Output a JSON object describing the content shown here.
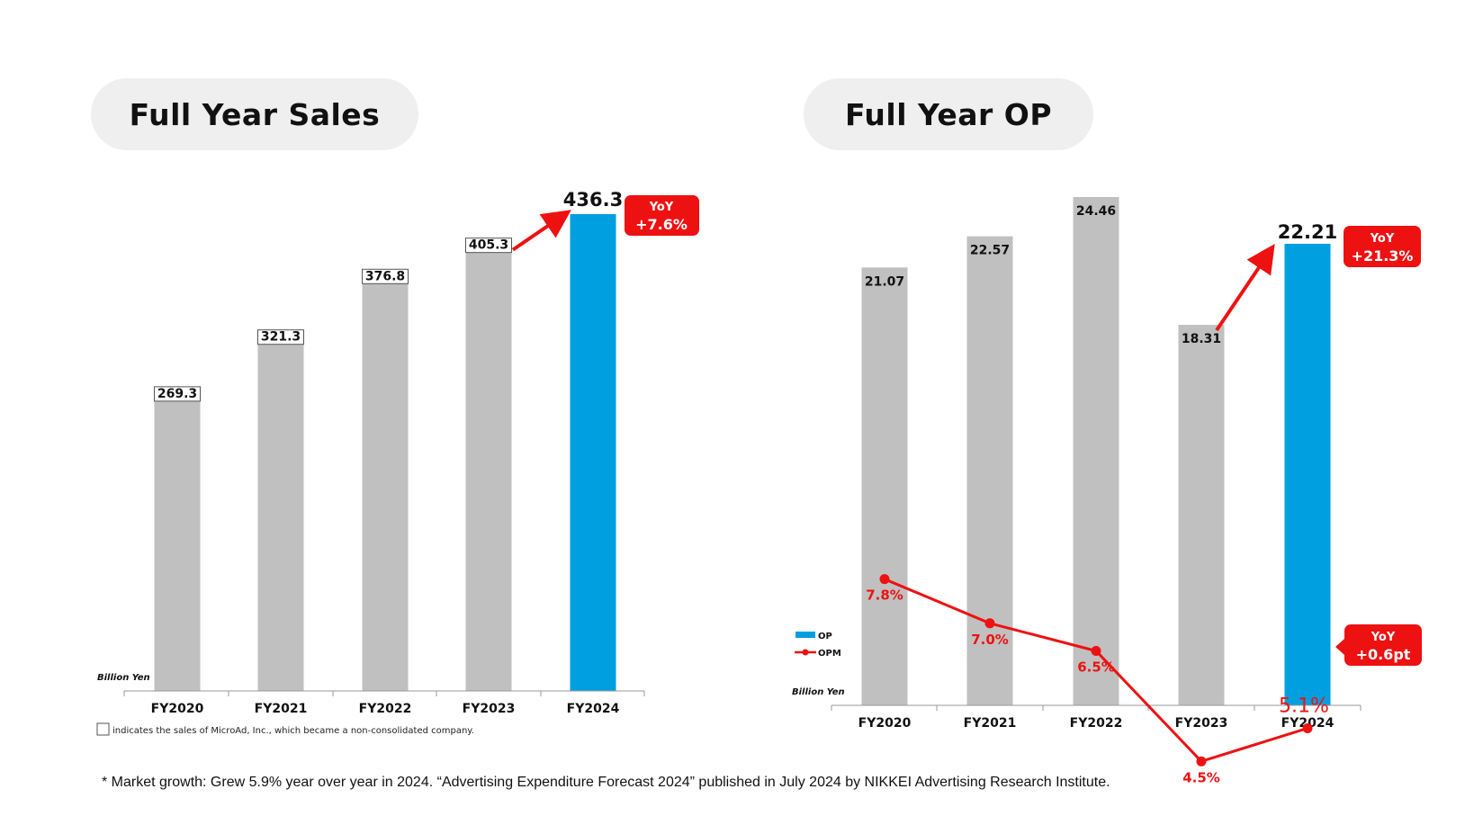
{
  "sales_panel": {
    "title": "Full Year Sales"
  },
  "op_panel": {
    "title": "Full Year OP"
  },
  "footnote": "* Market growth: Grew 5.9% year over year in 2024. “Advertising Expenditure Forecast 2024” published in July 2024 by NIKKEI Advertising Research Institute.",
  "colors": {
    "grey_bar": "#c0c0c0",
    "blue_bar": "#009fe0",
    "accent_red": "#ee1111"
  },
  "chart_data": [
    {
      "type": "bar",
      "title": "Full Year Sales",
      "unit": "Billion Yen",
      "categories": [
        "FY2020",
        "FY2021",
        "FY2022",
        "FY2023",
        "FY2024"
      ],
      "values": [
        269.3,
        321.3,
        376.8,
        405.3,
        436.3
      ],
      "value_labels": [
        "269.3",
        "321.3",
        "376.8",
        "405.3",
        "436.3"
      ],
      "highlight_index": 4,
      "callout": {
        "line1": "YoY",
        "line2": "+7.6%"
      },
      "microad_note": "indicates the sales of MicroAd, Inc., which became a non-consolidated company."
    },
    {
      "type": "bar",
      "title": "Full Year OP",
      "unit": "Billion Yen",
      "categories": [
        "FY2020",
        "FY2021",
        "FY2022",
        "FY2023",
        "FY2024"
      ],
      "series": [
        {
          "name": "OP",
          "values": [
            21.07,
            22.57,
            24.46,
            18.31,
            22.21
          ],
          "labels": [
            "21.07",
            "22.57",
            "24.46",
            "18.31",
            "22.21"
          ]
        },
        {
          "name": "OPM",
          "type": "line",
          "values": [
            7.8,
            7.0,
            6.5,
            4.5,
            5.1
          ],
          "labels": [
            "7.8%",
            "7.0%",
            "6.5%",
            "4.5%",
            "5.1%"
          ]
        }
      ],
      "highlight_index": 4,
      "callouts": [
        {
          "line1": "YoY",
          "line2": "+21.3%"
        },
        {
          "line1": "YoY",
          "line2": "+0.6pt"
        }
      ]
    }
  ]
}
